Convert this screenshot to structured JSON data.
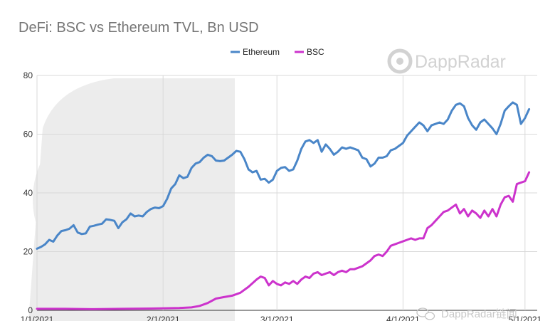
{
  "chart_data": {
    "type": "line",
    "title": "DeFi: BSC vs Ethereum TVL, Bn USD",
    "xlabel": "",
    "ylabel": "",
    "ylim": [
      0,
      80
    ],
    "yticks": [
      0,
      20,
      40,
      60,
      80
    ],
    "xticks": [
      "1/1/2021",
      "2/1/2021",
      "3/1/2021",
      "4/1/2021",
      "5/1/2021"
    ],
    "grid": true,
    "legend_position": "top",
    "series": [
      {
        "name": "Ethereum",
        "color": "#4a86c8",
        "points": [
          [
            "2021-01-01",
            21.0
          ],
          [
            "2021-01-02",
            21.6
          ],
          [
            "2021-01-03",
            22.5
          ],
          [
            "2021-01-04",
            24.0
          ],
          [
            "2021-01-05",
            23.4
          ],
          [
            "2021-01-06",
            25.5
          ],
          [
            "2021-01-07",
            27.0
          ],
          [
            "2021-01-08",
            27.3
          ],
          [
            "2021-01-09",
            27.8
          ],
          [
            "2021-01-10",
            29.0
          ],
          [
            "2021-01-11",
            26.5
          ],
          [
            "2021-01-12",
            26.0
          ],
          [
            "2021-01-13",
            26.2
          ],
          [
            "2021-01-14",
            28.5
          ],
          [
            "2021-01-15",
            28.8
          ],
          [
            "2021-01-16",
            29.2
          ],
          [
            "2021-01-17",
            29.5
          ],
          [
            "2021-01-18",
            31.0
          ],
          [
            "2021-01-19",
            30.8
          ],
          [
            "2021-01-20",
            30.5
          ],
          [
            "2021-01-21",
            28.0
          ],
          [
            "2021-01-22",
            30.0
          ],
          [
            "2021-01-23",
            31.0
          ],
          [
            "2021-01-24",
            33.0
          ],
          [
            "2021-01-25",
            32.0
          ],
          [
            "2021-01-26",
            32.3
          ],
          [
            "2021-01-27",
            32.0
          ],
          [
            "2021-01-28",
            33.5
          ],
          [
            "2021-01-29",
            34.5
          ],
          [
            "2021-01-30",
            35.0
          ],
          [
            "2021-01-31",
            34.8
          ],
          [
            "2021-02-01",
            35.5
          ],
          [
            "2021-02-02",
            38.0
          ],
          [
            "2021-02-03",
            41.5
          ],
          [
            "2021-02-04",
            43.0
          ],
          [
            "2021-02-05",
            46.0
          ],
          [
            "2021-02-06",
            45.0
          ],
          [
            "2021-02-07",
            45.5
          ],
          [
            "2021-02-08",
            48.5
          ],
          [
            "2021-02-09",
            50.0
          ],
          [
            "2021-02-10",
            50.5
          ],
          [
            "2021-02-11",
            52.0
          ],
          [
            "2021-02-12",
            53.0
          ],
          [
            "2021-02-13",
            52.5
          ],
          [
            "2021-02-14",
            51.0
          ],
          [
            "2021-02-15",
            50.8
          ],
          [
            "2021-02-16",
            51.0
          ],
          [
            "2021-02-17",
            52.0
          ],
          [
            "2021-02-18",
            53.0
          ],
          [
            "2021-02-19",
            54.3
          ],
          [
            "2021-02-20",
            54.0
          ],
          [
            "2021-02-21",
            51.5
          ],
          [
            "2021-02-22",
            48.0
          ],
          [
            "2021-02-23",
            47.0
          ],
          [
            "2021-02-24",
            47.5
          ],
          [
            "2021-02-25",
            44.5
          ],
          [
            "2021-02-26",
            44.8
          ],
          [
            "2021-02-27",
            43.5
          ],
          [
            "2021-02-28",
            44.5
          ],
          [
            "2021-03-01",
            47.5
          ],
          [
            "2021-03-02",
            48.5
          ],
          [
            "2021-03-03",
            48.8
          ],
          [
            "2021-03-04",
            47.5
          ],
          [
            "2021-03-05",
            48.0
          ],
          [
            "2021-03-06",
            51.0
          ],
          [
            "2021-03-07",
            55.0
          ],
          [
            "2021-03-08",
            57.5
          ],
          [
            "2021-03-09",
            58.0
          ],
          [
            "2021-03-10",
            57.0
          ],
          [
            "2021-03-11",
            58.0
          ],
          [
            "2021-03-12",
            54.0
          ],
          [
            "2021-03-13",
            56.5
          ],
          [
            "2021-03-14",
            55.0
          ],
          [
            "2021-03-15",
            53.0
          ],
          [
            "2021-03-16",
            54.0
          ],
          [
            "2021-03-17",
            55.5
          ],
          [
            "2021-03-18",
            55.0
          ],
          [
            "2021-03-19",
            55.5
          ],
          [
            "2021-03-20",
            55.0
          ],
          [
            "2021-03-21",
            54.5
          ],
          [
            "2021-03-22",
            52.0
          ],
          [
            "2021-03-23",
            51.5
          ],
          [
            "2021-03-24",
            49.0
          ],
          [
            "2021-03-25",
            50.0
          ],
          [
            "2021-03-26",
            52.0
          ],
          [
            "2021-03-27",
            52.0
          ],
          [
            "2021-03-28",
            52.5
          ],
          [
            "2021-03-29",
            54.5
          ],
          [
            "2021-03-30",
            55.0
          ],
          [
            "2021-03-31",
            56.0
          ],
          [
            "2021-04-01",
            57.0
          ],
          [
            "2021-04-02",
            59.5
          ],
          [
            "2021-04-03",
            61.0
          ],
          [
            "2021-04-04",
            62.5
          ],
          [
            "2021-04-05",
            64.0
          ],
          [
            "2021-04-06",
            63.0
          ],
          [
            "2021-04-07",
            61.0
          ],
          [
            "2021-04-08",
            63.0
          ],
          [
            "2021-04-09",
            63.5
          ],
          [
            "2021-04-10",
            64.0
          ],
          [
            "2021-04-11",
            63.5
          ],
          [
            "2021-04-12",
            65.0
          ],
          [
            "2021-04-13",
            68.0
          ],
          [
            "2021-04-14",
            70.0
          ],
          [
            "2021-04-15",
            70.5
          ],
          [
            "2021-04-16",
            69.5
          ],
          [
            "2021-04-17",
            65.5
          ],
          [
            "2021-04-18",
            63.0
          ],
          [
            "2021-04-19",
            61.5
          ],
          [
            "2021-04-20",
            64.0
          ],
          [
            "2021-04-21",
            65.0
          ],
          [
            "2021-04-22",
            63.5
          ],
          [
            "2021-04-23",
            62.0
          ],
          [
            "2021-04-24",
            60.0
          ],
          [
            "2021-04-25",
            63.5
          ],
          [
            "2021-04-26",
            68.0
          ],
          [
            "2021-04-27",
            69.5
          ],
          [
            "2021-04-28",
            70.8
          ],
          [
            "2021-04-29",
            70.0
          ],
          [
            "2021-04-30",
            63.5
          ],
          [
            "2021-05-01",
            65.5
          ],
          [
            "2021-05-02",
            68.5
          ]
        ]
      },
      {
        "name": "BSC",
        "color": "#cc33cc",
        "points": [
          [
            "2021-01-01",
            0.5
          ],
          [
            "2021-01-08",
            0.5
          ],
          [
            "2021-01-15",
            0.4
          ],
          [
            "2021-01-22",
            0.5
          ],
          [
            "2021-01-29",
            0.6
          ],
          [
            "2021-02-05",
            0.8
          ],
          [
            "2021-02-08",
            1.0
          ],
          [
            "2021-02-10",
            1.5
          ],
          [
            "2021-02-12",
            2.5
          ],
          [
            "2021-02-14",
            4.0
          ],
          [
            "2021-02-16",
            4.5
          ],
          [
            "2021-02-18",
            5.0
          ],
          [
            "2021-02-20",
            6.0
          ],
          [
            "2021-02-22",
            8.0
          ],
          [
            "2021-02-24",
            10.5
          ],
          [
            "2021-02-25",
            11.5
          ],
          [
            "2021-02-26",
            11.0
          ],
          [
            "2021-02-27",
            8.5
          ],
          [
            "2021-02-28",
            10.0
          ],
          [
            "2021-03-01",
            9.0
          ],
          [
            "2021-03-02",
            8.5
          ],
          [
            "2021-03-03",
            9.5
          ],
          [
            "2021-03-04",
            9.0
          ],
          [
            "2021-03-05",
            10.0
          ],
          [
            "2021-03-06",
            9.0
          ],
          [
            "2021-03-07",
            10.5
          ],
          [
            "2021-03-08",
            11.5
          ],
          [
            "2021-03-09",
            11.0
          ],
          [
            "2021-03-10",
            12.5
          ],
          [
            "2021-03-11",
            13.0
          ],
          [
            "2021-03-12",
            12.0
          ],
          [
            "2021-03-13",
            12.5
          ],
          [
            "2021-03-14",
            13.0
          ],
          [
            "2021-03-15",
            12.0
          ],
          [
            "2021-03-16",
            13.0
          ],
          [
            "2021-03-17",
            13.5
          ],
          [
            "2021-03-18",
            13.0
          ],
          [
            "2021-03-19",
            14.0
          ],
          [
            "2021-03-20",
            14.0
          ],
          [
            "2021-03-21",
            14.5
          ],
          [
            "2021-03-22",
            15.0
          ],
          [
            "2021-03-23",
            16.0
          ],
          [
            "2021-03-24",
            17.0
          ],
          [
            "2021-03-25",
            18.5
          ],
          [
            "2021-03-26",
            19.0
          ],
          [
            "2021-03-27",
            18.5
          ],
          [
            "2021-03-28",
            20.0
          ],
          [
            "2021-03-29",
            22.0
          ],
          [
            "2021-03-30",
            22.5
          ],
          [
            "2021-03-31",
            23.0
          ],
          [
            "2021-04-01",
            23.5
          ],
          [
            "2021-04-02",
            24.0
          ],
          [
            "2021-04-03",
            24.5
          ],
          [
            "2021-04-04",
            24.0
          ],
          [
            "2021-04-05",
            24.5
          ],
          [
            "2021-04-06",
            24.5
          ],
          [
            "2021-04-07",
            28.0
          ],
          [
            "2021-04-08",
            29.0
          ],
          [
            "2021-04-09",
            30.5
          ],
          [
            "2021-04-10",
            32.0
          ],
          [
            "2021-04-11",
            33.5
          ],
          [
            "2021-04-12",
            34.0
          ],
          [
            "2021-04-13",
            35.0
          ],
          [
            "2021-04-14",
            36.0
          ],
          [
            "2021-04-15",
            33.0
          ],
          [
            "2021-04-16",
            34.5
          ],
          [
            "2021-04-17",
            32.0
          ],
          [
            "2021-04-18",
            34.0
          ],
          [
            "2021-04-19",
            33.0
          ],
          [
            "2021-04-20",
            31.5
          ],
          [
            "2021-04-21",
            34.0
          ],
          [
            "2021-04-22",
            32.0
          ],
          [
            "2021-04-23",
            34.5
          ],
          [
            "2021-04-24",
            32.0
          ],
          [
            "2021-04-25",
            36.0
          ],
          [
            "2021-04-26",
            38.5
          ],
          [
            "2021-04-27",
            39.0
          ],
          [
            "2021-04-28",
            37.0
          ],
          [
            "2021-04-29",
            43.0
          ],
          [
            "2021-04-30",
            43.5
          ],
          [
            "2021-05-01",
            44.0
          ],
          [
            "2021-05-02",
            47.0
          ]
        ]
      }
    ]
  },
  "watermark": {
    "brand": "DappRadar",
    "caption": "DappRadar链闻",
    "color": "#d2d2d2"
  }
}
